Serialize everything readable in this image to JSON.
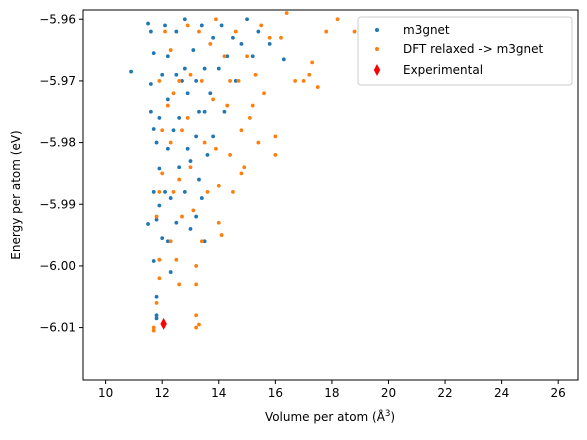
{
  "chart_data": {
    "type": "scatter",
    "xlabel_main": "Volume per atom (Å",
    "xlabel_sup": "3",
    "xlabel_tail": ")",
    "ylabel": "Energy per atom (eV)",
    "xlim": [
      9.2,
      26.7
    ],
    "ylim": [
      -6.0185,
      -5.9585
    ],
    "xticks": [
      10,
      12,
      14,
      16,
      18,
      20,
      22,
      24,
      26
    ],
    "yticks": [
      -5.96,
      -5.97,
      -5.98,
      -5.99,
      -6.0,
      -6.01
    ],
    "ytick_labels": [
      "−5.96",
      "−5.97",
      "−5.98",
      "−5.99",
      "−6.00",
      "−6.01"
    ],
    "grid": false,
    "legend_position": "top-right",
    "series": [
      {
        "name": "m3gnet",
        "color": "#1f77b4",
        "marker": "dot",
        "points": [
          [
            10.9,
            -5.9685
          ],
          [
            11.5,
            -5.9607
          ],
          [
            11.6,
            -5.962
          ],
          [
            11.7,
            -5.9655
          ],
          [
            11.6,
            -5.9705
          ],
          [
            11.6,
            -5.975
          ],
          [
            11.7,
            -5.9778
          ],
          [
            11.8,
            -5.98
          ],
          [
            11.9,
            -5.9842
          ],
          [
            11.7,
            -5.988
          ],
          [
            11.9,
            -5.9902
          ],
          [
            11.5,
            -5.9932
          ],
          [
            11.8,
            -5.9925
          ],
          [
            12.0,
            -5.9955
          ],
          [
            11.7,
            -5.9992
          ],
          [
            11.8,
            -6.005
          ],
          [
            11.8,
            -6.008
          ],
          [
            11.8,
            -6.0085
          ],
          [
            11.9,
            -5.999
          ],
          [
            12.1,
            -5.961
          ],
          [
            12.2,
            -5.966
          ],
          [
            12.2,
            -5.973
          ],
          [
            12.2,
            -5.981
          ],
          [
            12.3,
            -5.989
          ],
          [
            12.2,
            -5.996
          ],
          [
            12.3,
            -6.001
          ],
          [
            12.5,
            -5.962
          ],
          [
            12.5,
            -5.969
          ],
          [
            12.6,
            -5.976
          ],
          [
            12.6,
            -5.984
          ],
          [
            12.5,
            -5.993
          ],
          [
            12.8,
            -5.96
          ],
          [
            12.8,
            -5.968
          ],
          [
            12.9,
            -5.972
          ],
          [
            12.9,
            -5.981
          ],
          [
            12.8,
            -5.988
          ],
          [
            13.0,
            -5.994
          ],
          [
            13.1,
            -5.965
          ],
          [
            13.2,
            -5.97
          ],
          [
            13.2,
            -5.979
          ],
          [
            13.3,
            -5.986
          ],
          [
            13.2,
            -5.992
          ],
          [
            13.4,
            -5.961
          ],
          [
            13.5,
            -5.968
          ],
          [
            13.5,
            -5.975
          ],
          [
            13.6,
            -5.982
          ],
          [
            13.4,
            -5.989
          ],
          [
            13.5,
            -5.996
          ],
          [
            13.7,
            -5.972
          ],
          [
            13.8,
            -5.963
          ],
          [
            13.8,
            -5.979
          ],
          [
            14.0,
            -5.968
          ],
          [
            14.1,
            -5.961
          ],
          [
            14.2,
            -5.975
          ],
          [
            14.3,
            -5.966
          ],
          [
            14.5,
            -5.963
          ],
          [
            14.6,
            -5.97
          ],
          [
            14.8,
            -5.964
          ],
          [
            15.0,
            -5.96
          ],
          [
            15.2,
            -5.966
          ],
          [
            15.4,
            -5.962
          ],
          [
            15.8,
            -5.964
          ],
          [
            16.3,
            -5.9665
          ],
          [
            12.1,
            -5.988
          ],
          [
            12.4,
            -5.978
          ],
          [
            12.7,
            -5.97
          ],
          [
            13.0,
            -5.983
          ],
          [
            13.3,
            -5.975
          ],
          [
            11.9,
            -5.976
          ],
          [
            12.0,
            -5.969
          ]
        ]
      },
      {
        "name": "DFT relaxed -> m3gnet",
        "color": "#ff7f0e",
        "marker": "dot",
        "points": [
          [
            11.7,
            -6.01
          ],
          [
            11.7,
            -6.0105
          ],
          [
            11.8,
            -6.006
          ],
          [
            11.9,
            -6.002
          ],
          [
            11.9,
            -5.999
          ],
          [
            11.8,
            -5.992
          ],
          [
            12.0,
            -5.985
          ],
          [
            12.0,
            -5.978
          ],
          [
            11.9,
            -5.97
          ],
          [
            12.1,
            -5.962
          ],
          [
            12.3,
            -5.965
          ],
          [
            12.4,
            -5.972
          ],
          [
            12.3,
            -5.98
          ],
          [
            12.4,
            -5.988
          ],
          [
            12.3,
            -5.996
          ],
          [
            12.6,
            -6.003
          ],
          [
            12.6,
            -5.97
          ],
          [
            12.7,
            -5.978
          ],
          [
            12.6,
            -5.986
          ],
          [
            12.7,
            -5.992
          ],
          [
            12.9,
            -5.961
          ],
          [
            13.0,
            -5.969
          ],
          [
            12.9,
            -5.976
          ],
          [
            13.0,
            -5.984
          ],
          [
            13.1,
            -5.991
          ],
          [
            13.2,
            -6.0
          ],
          [
            13.2,
            -6.003
          ],
          [
            13.2,
            -6.008
          ],
          [
            13.3,
            -6.0095
          ],
          [
            13.2,
            -6.01
          ],
          [
            13.3,
            -5.962
          ],
          [
            13.4,
            -5.97
          ],
          [
            13.5,
            -5.98
          ],
          [
            13.6,
            -5.988
          ],
          [
            13.7,
            -5.964
          ],
          [
            13.8,
            -5.973
          ],
          [
            13.9,
            -5.981
          ],
          [
            14.0,
            -5.987
          ],
          [
            14.0,
            -5.993
          ],
          [
            14.1,
            -5.995
          ],
          [
            14.2,
            -5.966
          ],
          [
            14.3,
            -5.974
          ],
          [
            14.4,
            -5.982
          ],
          [
            14.5,
            -5.988
          ],
          [
            14.6,
            -5.962
          ],
          [
            14.7,
            -5.97
          ],
          [
            14.8,
            -5.978
          ],
          [
            14.9,
            -5.984
          ],
          [
            15.0,
            -5.966
          ],
          [
            15.2,
            -5.974
          ],
          [
            15.3,
            -5.969
          ],
          [
            15.5,
            -5.961
          ],
          [
            15.6,
            -5.972
          ],
          [
            15.8,
            -5.963
          ],
          [
            16.0,
            -5.979
          ],
          [
            16.0,
            -5.982
          ],
          [
            16.2,
            -5.963
          ],
          [
            16.4,
            -5.959
          ],
          [
            16.7,
            -5.97
          ],
          [
            17.0,
            -5.97
          ],
          [
            17.2,
            -5.969
          ],
          [
            17.5,
            -5.971
          ],
          [
            17.3,
            -5.967
          ],
          [
            17.8,
            -5.962
          ],
          [
            18.2,
            -5.96
          ],
          [
            18.8,
            -5.962
          ],
          [
            15.4,
            -5.98
          ],
          [
            14.8,
            -5.985
          ],
          [
            12.5,
            -5.999
          ],
          [
            13.4,
            -5.996
          ],
          [
            11.9,
            -5.988
          ],
          [
            12.2,
            -5.974
          ],
          [
            14.4,
            -5.97
          ],
          [
            13.9,
            -5.96
          ],
          [
            15.1,
            -5.976
          ]
        ]
      },
      {
        "name": "Experimental",
        "color": "#ff0000",
        "marker": "diamond",
        "points": [
          [
            12.05,
            -6.0094
          ]
        ]
      }
    ]
  }
}
